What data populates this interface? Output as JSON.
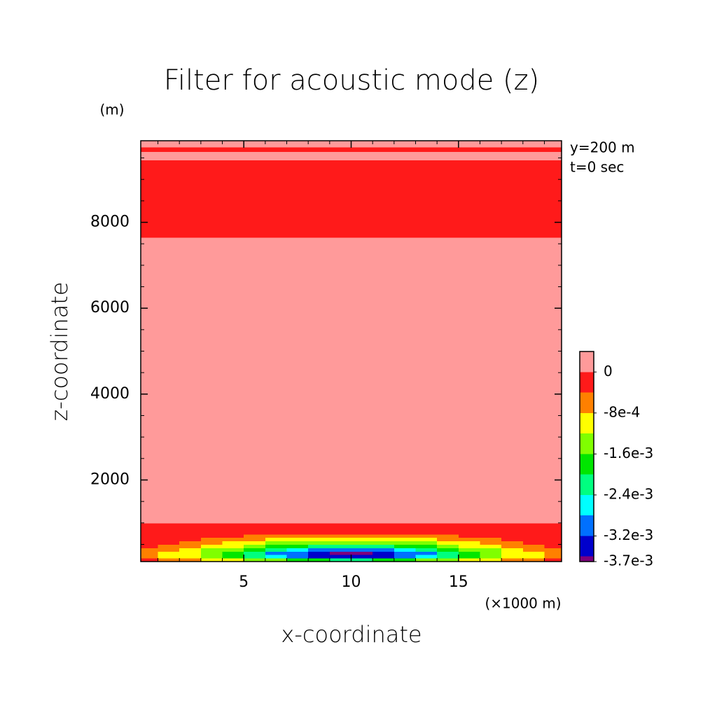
{
  "chart_data": {
    "type": "contour",
    "title": "Filter for acoustic mode (z)",
    "x_label": "x-coordinate",
    "y_label": "z-coordinate",
    "x_unit": "(×1000 m)",
    "y_unit": "(m)",
    "annotations": [
      "y=200 m",
      "t=0 sec"
    ],
    "xlim": [
      0.2,
      19.8
    ],
    "ylim": [
      100,
      9900
    ],
    "xticks": [
      5,
      10,
      15
    ],
    "yticks": [
      2000,
      4000,
      6000,
      8000
    ],
    "xticks_minor": [
      1,
      2,
      3,
      4,
      6,
      7,
      8,
      9,
      11,
      12,
      13,
      14,
      16,
      17,
      18,
      19
    ],
    "yticks_minor": [
      500,
      1000,
      1500,
      2500,
      3000,
      3500,
      4500,
      5000,
      5500,
      6500,
      7000,
      7500,
      8500,
      9000,
      9500
    ],
    "x_edges": [
      0.2,
      1,
      2,
      3,
      4,
      5,
      6,
      7,
      8,
      9,
      10,
      11,
      12,
      13,
      14,
      15,
      16,
      17,
      18,
      19,
      19.8
    ],
    "z_edges": [
      100,
      180,
      260,
      340,
      420,
      500,
      580,
      660,
      740,
      820,
      1000,
      7650,
      9450,
      9650,
      9750,
      9900
    ],
    "values": [
      [
        -0.00034,
        -0.00047,
        -0.00064,
        -0.00086,
        -0.00109,
        -0.00135,
        -0.00158,
        -0.00179,
        -0.00194,
        -0.00202,
        -0.00202,
        -0.00194,
        -0.00179,
        -0.00158,
        -0.00135,
        -0.00109,
        -0.00086,
        -0.00064,
        -0.00047,
        -0.00034
      ],
      [
        -0.00058,
        -0.00081,
        -0.00111,
        -0.00148,
        -0.00189,
        -0.00233,
        -0.00274,
        -0.0031,
        -0.00335,
        -0.0035,
        -0.0035,
        -0.00335,
        -0.0031,
        -0.00274,
        -0.00233,
        -0.00189,
        -0.00148,
        -0.00111,
        -0.00081,
        -0.00058
      ],
      [
        -0.0006,
        -0.00083,
        -0.00115,
        -0.00153,
        -0.00195,
        -0.0024,
        -0.00282,
        -0.00319,
        -0.00346,
        -0.0037,
        -0.0037,
        -0.00346,
        -0.00319,
        -0.00282,
        -0.0024,
        -0.00195,
        -0.00153,
        -0.00115,
        -0.00083,
        -0.0006
      ],
      [
        -0.00049,
        -0.00068,
        -0.00094,
        -0.00125,
        -0.00159,
        -0.00196,
        -0.0023,
        -0.00261,
        -0.00282,
        -0.00294,
        -0.00294,
        -0.00282,
        -0.00261,
        -0.0023,
        -0.00196,
        -0.00159,
        -0.00125,
        -0.00094,
        -0.00068,
        -0.00049
      ],
      [
        -0.00037,
        -0.00051,
        -0.0007,
        -0.00094,
        -0.00119,
        -0.00147,
        -0.00173,
        -0.00196,
        -0.00212,
        -0.00221,
        -0.00221,
        -0.00212,
        -0.00196,
        -0.00173,
        -0.00147,
        -0.00119,
        -0.00094,
        -0.0007,
        -0.00051,
        -0.00037
      ],
      [
        -0.00026,
        -0.00036,
        -0.00049,
        -0.00066,
        -0.00084,
        -0.00103,
        -0.00121,
        -0.00137,
        -0.00148,
        -0.00155,
        -0.00155,
        -0.00148,
        -0.00137,
        -0.00121,
        -0.00103,
        -0.00084,
        -0.00066,
        -0.00049,
        -0.00036,
        -0.00026
      ],
      [
        -0.00017,
        -0.00024,
        -0.00033,
        -0.00044,
        -0.00056,
        -0.00069,
        -0.00081,
        -0.00091,
        -0.00099,
        -0.00103,
        -0.00103,
        -0.00099,
        -0.00091,
        -0.00081,
        -0.00069,
        -0.00056,
        -0.00044,
        -0.00033,
        -0.00024,
        -0.00017
      ],
      [
        -0.0001,
        -0.00014,
        -0.0002,
        -0.00027,
        -0.00034,
        -0.00042,
        -0.00049,
        -0.00055,
        -0.0006,
        -0.00063,
        -0.00063,
        -0.0006,
        -0.00055,
        -0.00049,
        -0.00042,
        -0.00034,
        -0.00027,
        -0.0002,
        -0.00014,
        -0.0001
      ],
      [
        -5e-05,
        -7e-05,
        -9e-05,
        -0.00012,
        -0.00016,
        -0.0002,
        -0.00023,
        -0.00026,
        -0.00028,
        -0.00029,
        -0.00029,
        -0.00028,
        -0.00026,
        -0.00023,
        -0.0002,
        -0.00016,
        -0.00012,
        -9e-05,
        -7e-05,
        -5e-05
      ],
      [
        -1e-05,
        -2e-05,
        -2e-05,
        -3e-05,
        -4e-05,
        -5e-05,
        -6e-05,
        -7e-05,
        -7e-05,
        -7e-05,
        -7e-05,
        -7e-05,
        -7e-05,
        -6e-05,
        -5e-05,
        -4e-05,
        -3e-05,
        -2e-05,
        -2e-05,
        -1e-05
      ],
      [
        5e-05,
        5e-05,
        5e-05,
        5e-05,
        5e-05,
        5e-05,
        5e-05,
        5e-05,
        5e-05,
        5e-05,
        5e-05,
        5e-05,
        5e-05,
        5e-05,
        5e-05,
        5e-05,
        5e-05,
        5e-05,
        5e-05,
        5e-05
      ],
      [
        -0.0002,
        -0.0002,
        -0.0002,
        -0.0002,
        -0.0002,
        -0.0002,
        -0.0002,
        -0.0002,
        -0.0002,
        -0.0002,
        -0.0002,
        -0.0002,
        -0.0002,
        -0.0002,
        -0.0002,
        -0.0002,
        -0.0002,
        -0.0002,
        -0.0002,
        -0.0002
      ],
      [
        5e-05,
        5e-05,
        5e-05,
        5e-05,
        5e-05,
        5e-05,
        5e-05,
        5e-05,
        5e-05,
        5e-05,
        5e-05,
        5e-05,
        5e-05,
        5e-05,
        5e-05,
        5e-05,
        5e-05,
        5e-05,
        5e-05,
        5e-05
      ],
      [
        -0.0002,
        -0.0002,
        -0.0002,
        -0.0002,
        -0.0002,
        -0.0002,
        -0.0002,
        -0.0002,
        -0.0002,
        -0.0002,
        -0.0002,
        -0.0002,
        -0.0002,
        -0.0002,
        -0.0002,
        -0.0002,
        -0.0002,
        -0.0002,
        -0.0002,
        -0.0002
      ],
      [
        5e-05,
        5e-05,
        5e-05,
        5e-05,
        5e-05,
        5e-05,
        5e-05,
        5e-05,
        5e-05,
        5e-05,
        5e-05,
        5e-05,
        5e-05,
        5e-05,
        5e-05,
        5e-05,
        5e-05,
        5e-05,
        5e-05,
        5e-05
      ]
    ],
    "levels": [
      -0.0036,
      -0.0032,
      -0.0028,
      -0.0024,
      -0.002,
      -0.0016,
      -0.0012,
      -0.0008,
      -0.0004,
      0
    ],
    "colors": [
      "#7d007d",
      "#0000cc",
      "#0070ff",
      "#00ffff",
      "#00ff80",
      "#00e600",
      "#80ff00",
      "#ffff00",
      "#ff8000",
      "#ff1a1a",
      "#ff9a9a"
    ],
    "colorbar_lim": [
      -0.0037,
      0.0004
    ],
    "colorbar_ticks": [
      0,
      {
        "value": -0.0008,
        "label": "-8e-4"
      },
      {
        "value": -0.0016,
        "label": "-1.6e-3"
      },
      {
        "value": -0.0024,
        "label": "-2.4e-3"
      },
      {
        "value": -0.0032,
        "label": "-3.2e-3"
      },
      {
        "value": -0.0037,
        "label": "-3.7e-3"
      }
    ]
  }
}
